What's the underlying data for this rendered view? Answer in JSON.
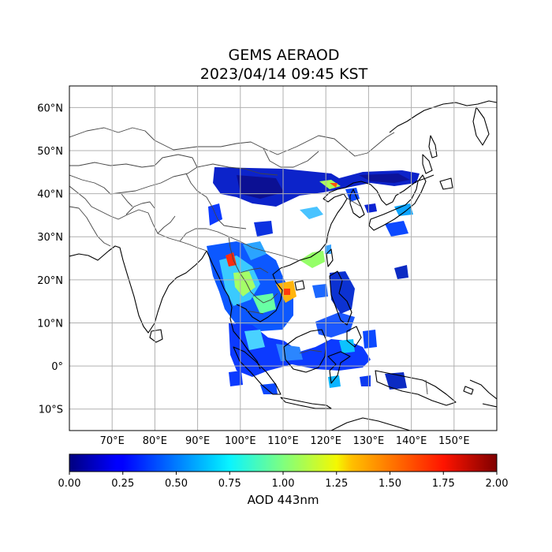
{
  "title_line1": "GEMS AERAOD",
  "title_line2": "2023/04/14 09:45 KST",
  "map": {
    "lon_range": [
      60,
      160
    ],
    "lat_range": [
      -15,
      65
    ],
    "lon_ticks": [
      "70°E",
      "80°E",
      "90°E",
      "100°E",
      "110°E",
      "120°E",
      "130°E",
      "140°E",
      "150°E"
    ],
    "lat_ticks": [
      "60°N",
      "50°N",
      "40°N",
      "30°N",
      "20°N",
      "10°N",
      "0°",
      "10°S"
    ],
    "gridlines": true
  },
  "colorbar": {
    "label": "AOD 443nm",
    "colormap": "jet",
    "range": [
      0.0,
      2.0
    ],
    "ticks": [
      "0.00",
      "0.25",
      "0.50",
      "0.75",
      "1.00",
      "1.25",
      "1.50",
      "1.75",
      "2.00"
    ]
  }
}
